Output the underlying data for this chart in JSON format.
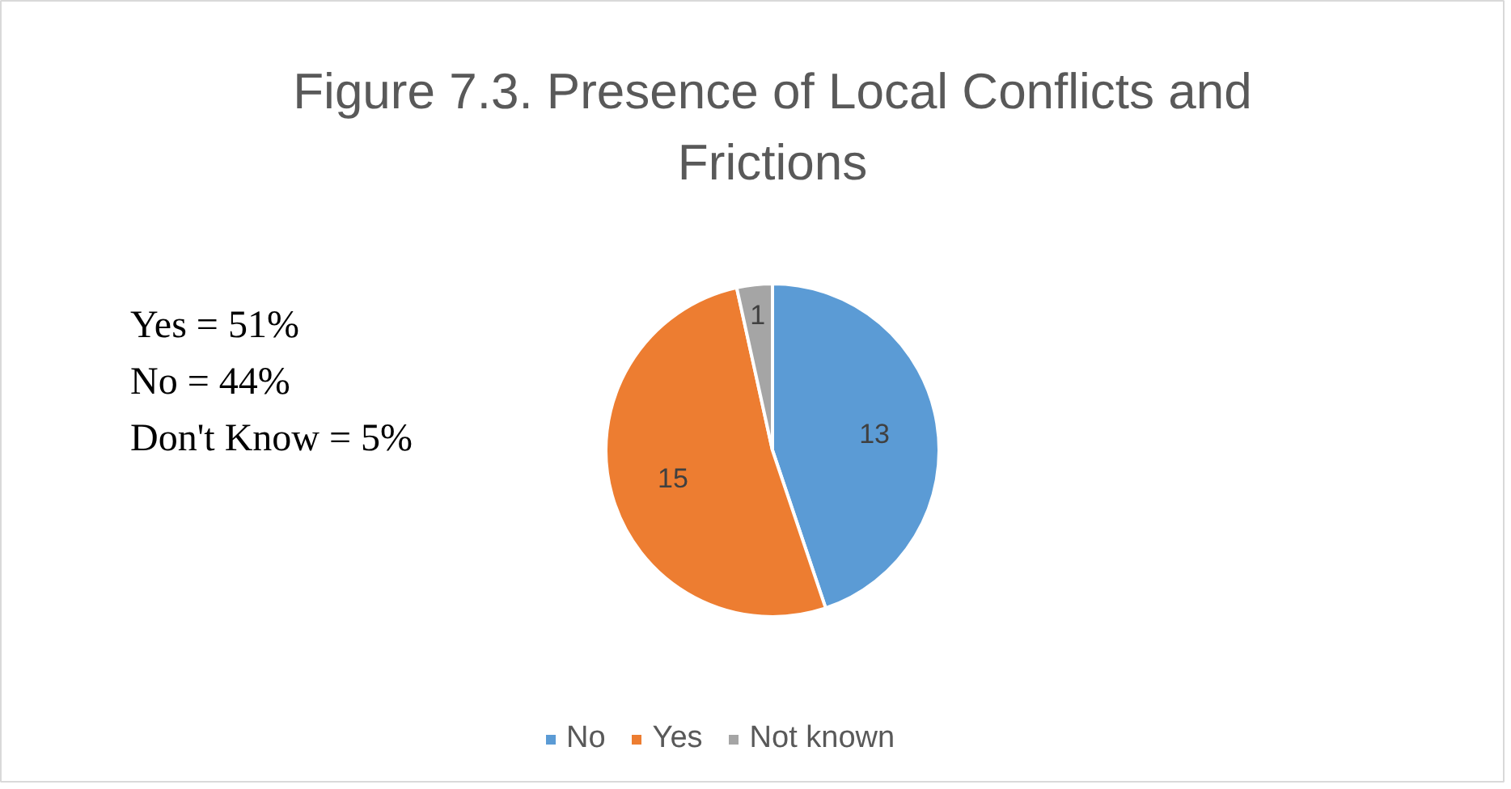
{
  "chart_data": {
    "type": "pie",
    "title": "Figure 7.3. Presence of Local Conflicts and Frictions",
    "categories": [
      "No",
      "Yes",
      "Not known"
    ],
    "values": [
      13,
      15,
      1
    ],
    "colors": [
      "#5b9bd5",
      "#ed7d31",
      "#a5a5a5"
    ],
    "data_labels": true,
    "legend": "bottom",
    "annotations": [
      "Yes = 51%",
      "No = 44%",
      "Don't Know = 5%"
    ]
  }
}
